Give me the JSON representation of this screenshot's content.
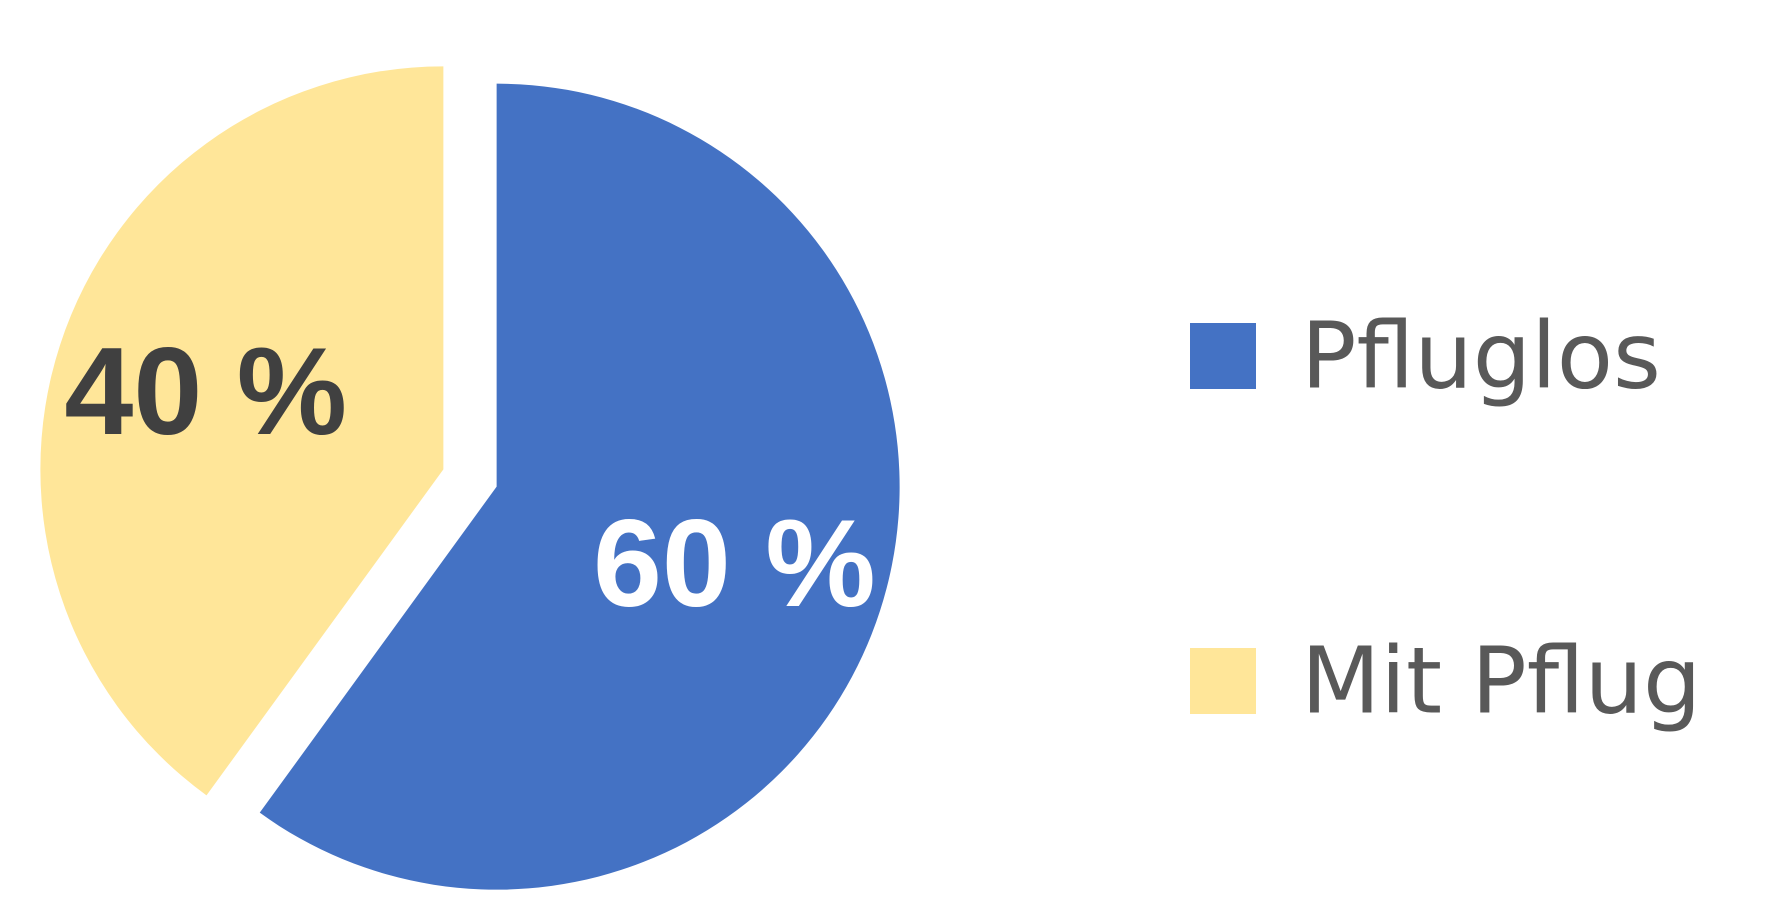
{
  "chart_data": {
    "type": "pie",
    "slices": [
      {
        "name": "Pfluglos",
        "value": 60,
        "label": "60 %",
        "color": "#4472C4",
        "label_color": "#FFFFFF",
        "exploded": true
      },
      {
        "name": "Mit Pflug",
        "value": 40,
        "label": "40 %",
        "color": "#FFE699",
        "label_color": "#404040",
        "exploded": true
      }
    ],
    "legend": {
      "placement": "right",
      "entries": [
        "Pfluglos",
        "Mit Pflug"
      ]
    },
    "start_angle_deg": 0,
    "direction": "clockwise"
  }
}
